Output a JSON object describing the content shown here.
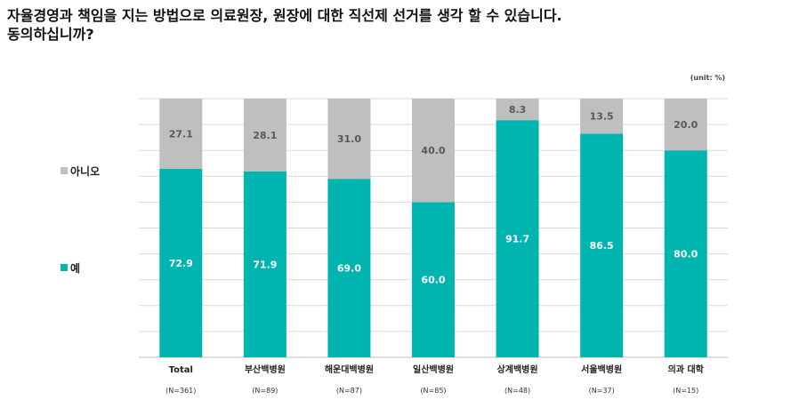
{
  "title_line1": "자율경영과 책임을 지는 방법으로 의료원장, 원장에 대한 직선제 선거를 생각 할 수 있습니다.",
  "title_line2": "동의하십니까?",
  "unit": "(unit: %)",
  "colors": {
    "yes": "#00b4b0",
    "no": "#bfbfbf",
    "grid": "#d9d9d9"
  },
  "chart_data": {
    "type": "bar",
    "stacked": true,
    "categories": [
      "Total",
      "부산백병원",
      "해운대백병원",
      "일산백병원",
      "상계백병원",
      "서울백병원",
      "의과 대학"
    ],
    "sample_sizes": [
      "(N=361)",
      "(N=89)",
      "(N=87)",
      "(N=85)",
      "(N=48)",
      "(N=37)",
      "(N=15)"
    ],
    "series": [
      {
        "name": "예",
        "values": [
          72.9,
          71.9,
          69.0,
          60.0,
          91.7,
          86.5,
          80.0
        ]
      },
      {
        "name": "아니오",
        "values": [
          27.1,
          28.1,
          31.0,
          40.0,
          8.3,
          13.5,
          20.0
        ]
      }
    ],
    "ylim": [
      0,
      100
    ],
    "grid": true,
    "legend_position": "left"
  }
}
